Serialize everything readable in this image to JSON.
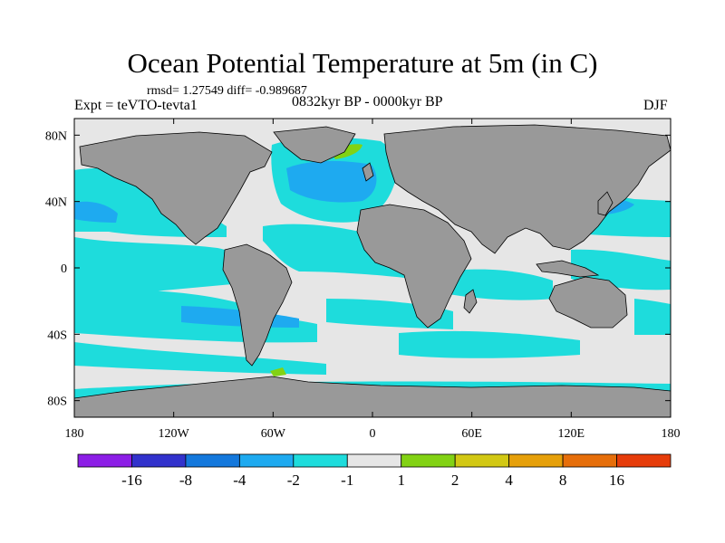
{
  "title": "Ocean Potential Temperature at 5m (in C)",
  "stats_line": "rmsd= 1.27549 diff= -0.989687",
  "experiment": "Expt = teVTO-tevta1",
  "period": "0832kyr BP - 0000kyr BP",
  "season": "DJF",
  "map": {
    "projection": "cylindrical equidistant",
    "lon_range": [
      -180,
      180
    ],
    "lat_range": [
      -90,
      90
    ],
    "lon_ticks": [
      {
        "value": -180,
        "label": "180"
      },
      {
        "value": -120,
        "label": "120W"
      },
      {
        "value": -60,
        "label": "60W"
      },
      {
        "value": 0,
        "label": "0"
      },
      {
        "value": 60,
        "label": "60E"
      },
      {
        "value": 120,
        "label": "120E"
      },
      {
        "value": 180,
        "label": "180"
      }
    ],
    "lat_ticks": [
      {
        "value": 80,
        "label": "80N"
      },
      {
        "value": 40,
        "label": "40N"
      },
      {
        "value": 0,
        "label": "0"
      },
      {
        "value": -40,
        "label": "40S"
      },
      {
        "value": -80,
        "label": "80S"
      }
    ],
    "colors": {
      "land": "#999999",
      "ocean_neutral": "#e6e6e6",
      "coast": "#000000"
    }
  },
  "colorbar": {
    "colors": [
      "#8c1ee6",
      "#3232cc",
      "#1478dc",
      "#1eaaf0",
      "#1edcdc",
      "#e6e6e6",
      "#82d214",
      "#d2c814",
      "#e6a00a",
      "#e66e0a",
      "#e63c0a"
    ],
    "labels": [
      "-16",
      "-8",
      "-4",
      "-2",
      "-1",
      "1",
      "2",
      "4",
      "8",
      "16"
    ]
  }
}
